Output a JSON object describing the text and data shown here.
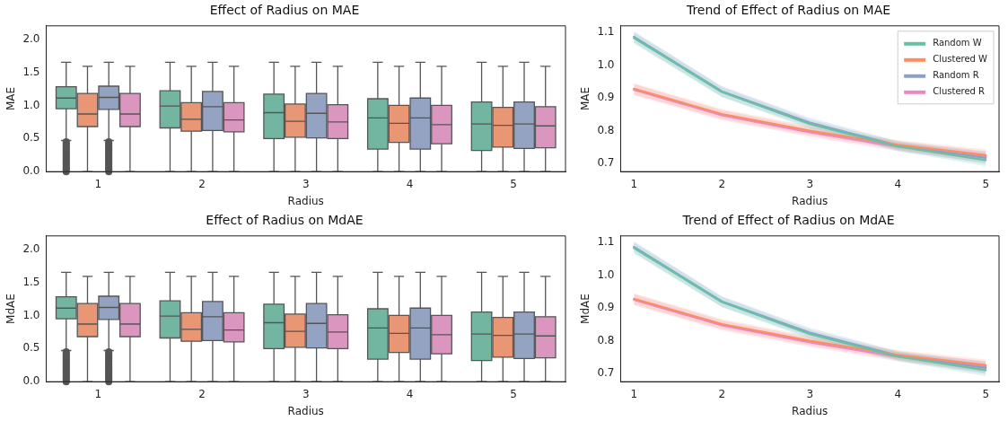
{
  "chart_data": [
    {
      "type": "box",
      "title": "Effect of Radius on MAE",
      "xlabel": "Radius",
      "ylabel": "MAE",
      "categories": [
        "1",
        "2",
        "3",
        "4",
        "5"
      ],
      "ylim": [
        0,
        2.2
      ],
      "yticks": [
        {
          "value": 0,
          "label": "0.0"
        },
        {
          "value": 0.5,
          "label": "0.5"
        },
        {
          "value": 1,
          "label": "1.0"
        },
        {
          "value": 1.5,
          "label": "1.5"
        },
        {
          "value": 2,
          "label": "2.0"
        }
      ],
      "grid": false,
      "legend": false,
      "series": [
        {
          "color": "#72b6a1",
          "boxes": [
            {
              "low": 0.47,
              "q1": 0.95,
              "median": 1.11,
              "q3": 1.28,
              "high": 1.65,
              "outliers": [
                0,
                0.025,
                0.05,
                0.075,
                0.1,
                0.125,
                0.15,
                0.175,
                0.2,
                0.225,
                0.25,
                0.275,
                0.3,
                0.325,
                0.35,
                0.375,
                0.4,
                0.425,
                0.45
              ]
            },
            {
              "low": 0,
              "q1": 0.66,
              "median": 0.99,
              "q3": 1.22,
              "high": 1.65
            },
            {
              "low": 0,
              "q1": 0.5,
              "median": 0.89,
              "q3": 1.17,
              "high": 1.65
            },
            {
              "low": 0,
              "q1": 0.34,
              "median": 0.81,
              "q3": 1.1,
              "high": 1.65
            },
            {
              "low": 0,
              "q1": 0.32,
              "median": 0.72,
              "q3": 1.05,
              "high": 1.65
            }
          ]
        },
        {
          "color": "#e99675",
          "boxes": [
            {
              "low": 0,
              "q1": 0.68,
              "median": 0.87,
              "q3": 1.18,
              "high": 1.59
            },
            {
              "low": 0,
              "q1": 0.61,
              "median": 0.79,
              "q3": 1.04,
              "high": 1.59
            },
            {
              "low": 0,
              "q1": 0.52,
              "median": 0.76,
              "q3": 1.02,
              "high": 1.59
            },
            {
              "low": 0,
              "q1": 0.44,
              "median": 0.73,
              "q3": 1.0,
              "high": 1.59
            },
            {
              "low": 0,
              "q1": 0.37,
              "median": 0.7,
              "q3": 0.97,
              "high": 1.59
            }
          ]
        },
        {
          "color": "#95a3c3",
          "boxes": [
            {
              "low": 0.47,
              "q1": 0.94,
              "median": 1.12,
              "q3": 1.29,
              "high": 1.65,
              "outliers": [
                0,
                0.025,
                0.05,
                0.075,
                0.1,
                0.125,
                0.15,
                0.175,
                0.2,
                0.225,
                0.25,
                0.275,
                0.3,
                0.325,
                0.35,
                0.375,
                0.4,
                0.425,
                0.45
              ]
            },
            {
              "low": 0,
              "q1": 0.62,
              "median": 0.98,
              "q3": 1.21,
              "high": 1.65
            },
            {
              "low": 0,
              "q1": 0.51,
              "median": 0.88,
              "q3": 1.18,
              "high": 1.65
            },
            {
              "low": 0,
              "q1": 0.34,
              "median": 0.81,
              "q3": 1.11,
              "high": 1.65
            },
            {
              "low": 0,
              "q1": 0.35,
              "median": 0.72,
              "q3": 1.05,
              "high": 1.65
            }
          ]
        },
        {
          "color": "#db96c0",
          "boxes": [
            {
              "low": 0,
              "q1": 0.68,
              "median": 0.87,
              "q3": 1.18,
              "high": 1.59
            },
            {
              "low": 0,
              "q1": 0.6,
              "median": 0.78,
              "q3": 1.04,
              "high": 1.59
            },
            {
              "low": 0,
              "q1": 0.5,
              "median": 0.75,
              "q3": 1.01,
              "high": 1.59
            },
            {
              "low": 0,
              "q1": 0.42,
              "median": 0.71,
              "q3": 1.0,
              "high": 1.59
            },
            {
              "low": 0,
              "q1": 0.36,
              "median": 0.69,
              "q3": 0.98,
              "high": 1.59
            }
          ]
        }
      ]
    },
    {
      "type": "line",
      "title": "Trend of Effect of Radius on MAE",
      "xlabel": "Radius",
      "ylabel": "MAE",
      "x": [
        1,
        2,
        3,
        4,
        5
      ],
      "xlim": [
        0.85,
        5.15
      ],
      "xticks": [
        1,
        2,
        3,
        4,
        5
      ],
      "ylim": [
        0.675,
        1.12
      ],
      "yticks": [
        0.7,
        0.8,
        0.9,
        {
          "value": 1,
          "label": "1.0"
        },
        1.1
      ],
      "grid": false,
      "legend": "top right",
      "marker": "none",
      "series": [
        {
          "name": "Random W",
          "color": "#66c2a5",
          "values": [
            1.083,
            0.918,
            0.82,
            0.752,
            0.71
          ],
          "lower": [
            1.066,
            0.902,
            0.806,
            0.738,
            0.692
          ],
          "upper": [
            1.1,
            0.934,
            0.834,
            0.766,
            0.728
          ]
        },
        {
          "name": "Clustered W",
          "color": "#fc8d62",
          "values": [
            0.928,
            0.851,
            0.8,
            0.757,
            0.725
          ],
          "lower": [
            0.911,
            0.836,
            0.786,
            0.743,
            0.707
          ],
          "upper": [
            0.945,
            0.866,
            0.814,
            0.771,
            0.743
          ]
        },
        {
          "name": "Random R",
          "color": "#8da0cb",
          "values": [
            1.087,
            0.92,
            0.825,
            0.755,
            0.717
          ],
          "lower": [
            1.07,
            0.904,
            0.811,
            0.741,
            0.699
          ],
          "upper": [
            1.104,
            0.936,
            0.839,
            0.769,
            0.735
          ]
        },
        {
          "name": "Clustered R",
          "color": "#e78ac3",
          "values": [
            0.925,
            0.847,
            0.795,
            0.751,
            0.72
          ],
          "lower": [
            0.908,
            0.832,
            0.781,
            0.737,
            0.702
          ],
          "upper": [
            0.942,
            0.862,
            0.809,
            0.765,
            0.738
          ]
        }
      ]
    },
    {
      "type": "box",
      "title": "Effect of Radius on MdAE",
      "xlabel": "Radius",
      "ylabel": "MdAE",
      "categories": [
        "1",
        "2",
        "3",
        "4",
        "5"
      ],
      "ylim": [
        0,
        2.2
      ],
      "yticks": [
        {
          "value": 0,
          "label": "0.0"
        },
        {
          "value": 0.5,
          "label": "0.5"
        },
        {
          "value": 1,
          "label": "1.0"
        },
        {
          "value": 1.5,
          "label": "1.5"
        },
        {
          "value": 2,
          "label": "2.0"
        }
      ],
      "grid": false,
      "legend": false,
      "series": [
        {
          "color": "#72b6a1",
          "boxes": [
            {
              "low": 0.47,
              "q1": 0.95,
              "median": 1.11,
              "q3": 1.28,
              "high": 1.65,
              "outliers": [
                0,
                0.025,
                0.05,
                0.075,
                0.1,
                0.125,
                0.15,
                0.175,
                0.2,
                0.225,
                0.25,
                0.275,
                0.3,
                0.325,
                0.35,
                0.375,
                0.4,
                0.425,
                0.45
              ]
            },
            {
              "low": 0,
              "q1": 0.66,
              "median": 0.99,
              "q3": 1.22,
              "high": 1.65
            },
            {
              "low": 0,
              "q1": 0.5,
              "median": 0.89,
              "q3": 1.17,
              "high": 1.65
            },
            {
              "low": 0,
              "q1": 0.34,
              "median": 0.81,
              "q3": 1.1,
              "high": 1.65
            },
            {
              "low": 0,
              "q1": 0.32,
              "median": 0.72,
              "q3": 1.05,
              "high": 1.65
            }
          ]
        },
        {
          "color": "#e99675",
          "boxes": [
            {
              "low": 0,
              "q1": 0.68,
              "median": 0.87,
              "q3": 1.18,
              "high": 1.59
            },
            {
              "low": 0,
              "q1": 0.61,
              "median": 0.79,
              "q3": 1.04,
              "high": 1.59
            },
            {
              "low": 0,
              "q1": 0.52,
              "median": 0.76,
              "q3": 1.02,
              "high": 1.59
            },
            {
              "low": 0,
              "q1": 0.44,
              "median": 0.73,
              "q3": 1.0,
              "high": 1.59
            },
            {
              "low": 0,
              "q1": 0.37,
              "median": 0.7,
              "q3": 0.97,
              "high": 1.59
            }
          ]
        },
        {
          "color": "#95a3c3",
          "boxes": [
            {
              "low": 0.47,
              "q1": 0.94,
              "median": 1.12,
              "q3": 1.29,
              "high": 1.65,
              "outliers": [
                0,
                0.025,
                0.05,
                0.075,
                0.1,
                0.125,
                0.15,
                0.175,
                0.2,
                0.225,
                0.25,
                0.275,
                0.3,
                0.325,
                0.35,
                0.375,
                0.4,
                0.425,
                0.45
              ]
            },
            {
              "low": 0,
              "q1": 0.62,
              "median": 0.98,
              "q3": 1.21,
              "high": 1.65
            },
            {
              "low": 0,
              "q1": 0.51,
              "median": 0.88,
              "q3": 1.18,
              "high": 1.65
            },
            {
              "low": 0,
              "q1": 0.34,
              "median": 0.81,
              "q3": 1.11,
              "high": 1.65
            },
            {
              "low": 0,
              "q1": 0.35,
              "median": 0.72,
              "q3": 1.05,
              "high": 1.65
            }
          ]
        },
        {
          "color": "#db96c0",
          "boxes": [
            {
              "low": 0,
              "q1": 0.68,
              "median": 0.87,
              "q3": 1.18,
              "high": 1.59
            },
            {
              "low": 0,
              "q1": 0.6,
              "median": 0.78,
              "q3": 1.04,
              "high": 1.59
            },
            {
              "low": 0,
              "q1": 0.5,
              "median": 0.75,
              "q3": 1.01,
              "high": 1.59
            },
            {
              "low": 0,
              "q1": 0.42,
              "median": 0.71,
              "q3": 1.0,
              "high": 1.59
            },
            {
              "low": 0,
              "q1": 0.36,
              "median": 0.69,
              "q3": 0.98,
              "high": 1.59
            }
          ]
        }
      ]
    },
    {
      "type": "line",
      "title": "Trend of Effect of Radius on MdAE",
      "xlabel": "Radius",
      "ylabel": "MdAE",
      "x": [
        1,
        2,
        3,
        4,
        5
      ],
      "xlim": [
        0.85,
        5.15
      ],
      "xticks": [
        1,
        2,
        3,
        4,
        5
      ],
      "ylim": [
        0.675,
        1.12
      ],
      "yticks": [
        0.7,
        0.8,
        0.9,
        {
          "value": 1,
          "label": "1.0"
        },
        1.1
      ],
      "grid": false,
      "legend": false,
      "marker": "none",
      "series": [
        {
          "color": "#66c2a5",
          "values": [
            1.083,
            0.918,
            0.82,
            0.752,
            0.71
          ],
          "lower": [
            1.066,
            0.902,
            0.806,
            0.738,
            0.692
          ],
          "upper": [
            1.1,
            0.934,
            0.834,
            0.766,
            0.728
          ]
        },
        {
          "color": "#fc8d62",
          "values": [
            0.928,
            0.851,
            0.8,
            0.757,
            0.725
          ],
          "lower": [
            0.911,
            0.836,
            0.786,
            0.743,
            0.707
          ],
          "upper": [
            0.945,
            0.866,
            0.814,
            0.771,
            0.743
          ]
        },
        {
          "color": "#8da0cb",
          "values": [
            1.087,
            0.92,
            0.825,
            0.755,
            0.717
          ],
          "lower": [
            1.07,
            0.904,
            0.811,
            0.741,
            0.699
          ],
          "upper": [
            1.104,
            0.936,
            0.839,
            0.769,
            0.735
          ]
        },
        {
          "color": "#e78ac3",
          "values": [
            0.925,
            0.847,
            0.795,
            0.751,
            0.72
          ],
          "lower": [
            0.908,
            0.832,
            0.781,
            0.737,
            0.702
          ],
          "upper": [
            0.942,
            0.862,
            0.809,
            0.765,
            0.738
          ]
        }
      ]
    }
  ]
}
